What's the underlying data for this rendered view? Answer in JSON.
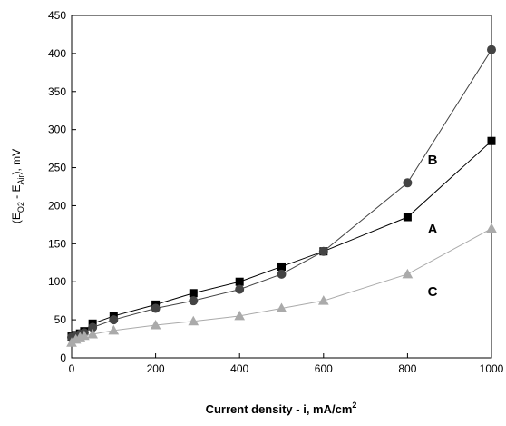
{
  "chart_data": {
    "type": "line",
    "xlabel": [
      "Current density - i, mA/cm",
      "2"
    ],
    "ylabel": [
      "(E",
      "O2",
      " - E",
      "Air",
      "), mV"
    ],
    "x": [
      0,
      10,
      20,
      30,
      50,
      100,
      200,
      290,
      400,
      500,
      600,
      800,
      1000
    ],
    "series": [
      {
        "name": "A",
        "color": "#000000",
        "marker": "square",
        "values": [
          28,
          30,
          32,
          35,
          45,
          55,
          70,
          85,
          100,
          120,
          140,
          185,
          285
        ]
      },
      {
        "name": "B",
        "color": "#444444",
        "marker": "circle",
        "values": [
          27,
          29,
          31,
          33,
          40,
          50,
          65,
          75,
          90,
          110,
          140,
          230,
          405
        ]
      },
      {
        "name": "C",
        "color": "#aaaaaa",
        "marker": "triangle",
        "values": [
          20,
          24,
          27,
          29,
          31,
          36,
          43,
          48,
          55,
          65,
          75,
          110,
          170
        ]
      }
    ],
    "xlim": [
      0,
      1000
    ],
    "xticks": [
      0,
      200,
      400,
      600,
      800,
      1000
    ],
    "ylim": [
      0,
      450
    ],
    "yticks": [
      0,
      50,
      100,
      150,
      200,
      250,
      300,
      350,
      400,
      450
    ]
  }
}
